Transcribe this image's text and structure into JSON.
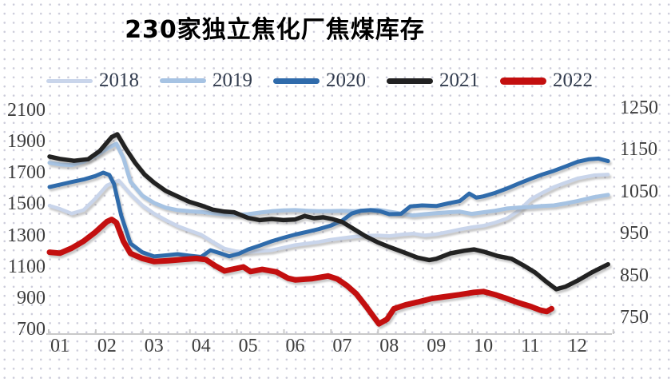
{
  "title": "230家独立焦化厂焦煤库存",
  "legend": {
    "items": [
      {
        "label": "2018",
        "color": "#c9d5eb",
        "thickness": 5
      },
      {
        "label": "2019",
        "color": "#a6c3e3",
        "thickness": 6
      },
      {
        "label": "2020",
        "color": "#2f6bab",
        "thickness": 7
      },
      {
        "label": "2021",
        "color": "#222222",
        "thickness": 7
      },
      {
        "label": "2022",
        "color": "#c30f0f",
        "thickness": 9
      }
    ]
  },
  "chart_data": {
    "type": "line",
    "title": "230家独立焦化厂焦煤库存",
    "xlabel": "",
    "ylabel": "",
    "grid": false,
    "legend_position": "top",
    "x_ticks": [
      "01",
      "02",
      "03",
      "04",
      "05",
      "06",
      "07",
      "08",
      "09",
      "10",
      "11",
      "12"
    ],
    "left_axis": {
      "ticks": [
        2100,
        1900,
        1700,
        1500,
        1300,
        1100,
        900,
        700
      ],
      "min": 700,
      "max": 2100
    },
    "right_axis": {
      "ticks": [
        1250,
        1150,
        1050,
        950,
        850,
        750
      ],
      "min": 750,
      "max": 1250
    },
    "series": [
      {
        "name": "2018",
        "color": "#c9d5eb",
        "width": 4.5,
        "axis": "left",
        "points": [
          [
            0.78,
            1490
          ],
          [
            1,
            1470
          ],
          [
            1.25,
            1440
          ],
          [
            1.5,
            1462
          ],
          [
            1.75,
            1535
          ],
          [
            2,
            1620
          ],
          [
            2.25,
            1652
          ],
          [
            2.5,
            1565
          ],
          [
            2.75,
            1492
          ],
          [
            3,
            1440
          ],
          [
            3.25,
            1398
          ],
          [
            3.5,
            1360
          ],
          [
            3.75,
            1332
          ],
          [
            4,
            1305
          ],
          [
            4.25,
            1258
          ],
          [
            4.5,
            1215
          ],
          [
            4.75,
            1198
          ],
          [
            5,
            1192
          ],
          [
            5.25,
            1200
          ],
          [
            5.5,
            1205
          ],
          [
            5.75,
            1222
          ],
          [
            6,
            1238
          ],
          [
            6.25,
            1248
          ],
          [
            6.5,
            1258
          ],
          [
            6.75,
            1272
          ],
          [
            7,
            1282
          ],
          [
            7.25,
            1292
          ],
          [
            7.5,
            1298
          ],
          [
            7.75,
            1300
          ],
          [
            8,
            1296
          ],
          [
            8.25,
            1305
          ],
          [
            8.5,
            1312
          ],
          [
            8.75,
            1300
          ],
          [
            9,
            1308
          ],
          [
            9.25,
            1322
          ],
          [
            9.5,
            1338
          ],
          [
            9.75,
            1352
          ],
          [
            10,
            1362
          ],
          [
            10.25,
            1382
          ],
          [
            10.5,
            1408
          ],
          [
            10.75,
            1458
          ],
          [
            11,
            1530
          ],
          [
            11.25,
            1572
          ],
          [
            11.5,
            1610
          ],
          [
            11.75,
            1638
          ],
          [
            12,
            1665
          ],
          [
            12.35,
            1685
          ],
          [
            12.65,
            1690
          ]
        ]
      },
      {
        "name": "2019",
        "color": "#a6c3e3",
        "width": 5,
        "axis": "left",
        "points": [
          [
            0.78,
            1765
          ],
          [
            1,
            1755
          ],
          [
            1.25,
            1750
          ],
          [
            1.5,
            1772
          ],
          [
            1.75,
            1808
          ],
          [
            2,
            1855
          ],
          [
            2.2,
            1888
          ],
          [
            2.35,
            1795
          ],
          [
            2.5,
            1645
          ],
          [
            2.75,
            1555
          ],
          [
            3,
            1508
          ],
          [
            3.25,
            1478
          ],
          [
            3.5,
            1462
          ],
          [
            3.75,
            1455
          ],
          [
            4,
            1450
          ],
          [
            4.25,
            1442
          ],
          [
            4.5,
            1435
          ],
          [
            4.75,
            1432
          ],
          [
            5,
            1436
          ],
          [
            5.25,
            1446
          ],
          [
            5.5,
            1455
          ],
          [
            5.75,
            1460
          ],
          [
            6,
            1462
          ],
          [
            6.25,
            1458
          ],
          [
            6.5,
            1455
          ],
          [
            6.75,
            1456
          ],
          [
            7,
            1458
          ],
          [
            7.25,
            1455
          ],
          [
            7.5,
            1460
          ],
          [
            7.75,
            1465
          ],
          [
            8,
            1452
          ],
          [
            8.25,
            1440
          ],
          [
            8.5,
            1428
          ],
          [
            8.75,
            1436
          ],
          [
            9,
            1442
          ],
          [
            9.25,
            1448
          ],
          [
            9.5,
            1452
          ],
          [
            9.75,
            1438
          ],
          [
            10,
            1448
          ],
          [
            10.25,
            1458
          ],
          [
            10.5,
            1472
          ],
          [
            10.75,
            1478
          ],
          [
            11,
            1482
          ],
          [
            11.25,
            1488
          ],
          [
            11.5,
            1492
          ],
          [
            11.75,
            1505
          ],
          [
            12,
            1520
          ],
          [
            12.35,
            1545
          ],
          [
            12.65,
            1560
          ]
        ]
      },
      {
        "name": "2020",
        "color": "#2f6bab",
        "width": 5,
        "axis": "left",
        "points": [
          [
            0.78,
            1610
          ],
          [
            1,
            1625
          ],
          [
            1.25,
            1642
          ],
          [
            1.5,
            1658
          ],
          [
            1.75,
            1680
          ],
          [
            1.92,
            1702
          ],
          [
            2.05,
            1688
          ],
          [
            2.15,
            1630
          ],
          [
            2.3,
            1430
          ],
          [
            2.5,
            1248
          ],
          [
            2.75,
            1192
          ],
          [
            3,
            1165
          ],
          [
            3.25,
            1172
          ],
          [
            3.5,
            1180
          ],
          [
            3.75,
            1170
          ],
          [
            4,
            1162
          ],
          [
            4.2,
            1205
          ],
          [
            4.4,
            1186
          ],
          [
            4.6,
            1166
          ],
          [
            4.8,
            1182
          ],
          [
            5,
            1210
          ],
          [
            5.25,
            1235
          ],
          [
            5.5,
            1262
          ],
          [
            5.75,
            1285
          ],
          [
            6,
            1305
          ],
          [
            6.25,
            1322
          ],
          [
            6.5,
            1340
          ],
          [
            6.75,
            1362
          ],
          [
            7,
            1395
          ],
          [
            7.2,
            1440
          ],
          [
            7.4,
            1458
          ],
          [
            7.6,
            1462
          ],
          [
            7.8,
            1455
          ],
          [
            8,
            1436
          ],
          [
            8.25,
            1438
          ],
          [
            8.45,
            1486
          ],
          [
            8.7,
            1492
          ],
          [
            9,
            1488
          ],
          [
            9.25,
            1505
          ],
          [
            9.5,
            1520
          ],
          [
            9.7,
            1568
          ],
          [
            9.85,
            1542
          ],
          [
            10,
            1550
          ],
          [
            10.25,
            1572
          ],
          [
            10.5,
            1600
          ],
          [
            10.75,
            1632
          ],
          [
            11,
            1662
          ],
          [
            11.25,
            1690
          ],
          [
            11.5,
            1714
          ],
          [
            11.75,
            1742
          ],
          [
            12,
            1772
          ],
          [
            12.25,
            1788
          ],
          [
            12.45,
            1792
          ],
          [
            12.65,
            1776
          ]
        ]
      },
      {
        "name": "2021",
        "color": "#222222",
        "width": 5.5,
        "axis": "left",
        "points": [
          [
            0.78,
            1805
          ],
          [
            1,
            1790
          ],
          [
            1.3,
            1778
          ],
          [
            1.6,
            1788
          ],
          [
            1.85,
            1842
          ],
          [
            2.1,
            1930
          ],
          [
            2.22,
            1948
          ],
          [
            2.4,
            1855
          ],
          [
            2.6,
            1765
          ],
          [
            2.8,
            1690
          ],
          [
            3,
            1638
          ],
          [
            3.25,
            1585
          ],
          [
            3.5,
            1550
          ],
          [
            3.75,
            1515
          ],
          [
            4,
            1492
          ],
          [
            4.25,
            1465
          ],
          [
            4.5,
            1452
          ],
          [
            4.7,
            1448
          ],
          [
            5,
            1412
          ],
          [
            5.25,
            1398
          ],
          [
            5.5,
            1405
          ],
          [
            5.75,
            1398
          ],
          [
            6,
            1402
          ],
          [
            6.2,
            1424
          ],
          [
            6.4,
            1410
          ],
          [
            6.6,
            1416
          ],
          [
            6.8,
            1404
          ],
          [
            7,
            1386
          ],
          [
            7.25,
            1340
          ],
          [
            7.5,
            1294
          ],
          [
            7.75,
            1256
          ],
          [
            8,
            1226
          ],
          [
            8.3,
            1192
          ],
          [
            8.6,
            1158
          ],
          [
            8.85,
            1142
          ],
          [
            9,
            1150
          ],
          [
            9.3,
            1185
          ],
          [
            9.6,
            1202
          ],
          [
            9.8,
            1210
          ],
          [
            10,
            1196
          ],
          [
            10.3,
            1168
          ],
          [
            10.6,
            1150
          ],
          [
            10.85,
            1108
          ],
          [
            11.1,
            1062
          ],
          [
            11.35,
            1000
          ],
          [
            11.55,
            955
          ],
          [
            11.75,
            972
          ],
          [
            12,
            1010
          ],
          [
            12.3,
            1062
          ],
          [
            12.65,
            1115
          ]
        ]
      },
      {
        "name": "2022",
        "color": "#c30f0f",
        "width": 7,
        "axis": "left",
        "points": [
          [
            0.78,
            1192
          ],
          [
            1,
            1186
          ],
          [
            1.25,
            1218
          ],
          [
            1.5,
            1262
          ],
          [
            1.75,
            1320
          ],
          [
            2,
            1388
          ],
          [
            2.1,
            1402
          ],
          [
            2.2,
            1382
          ],
          [
            2.35,
            1262
          ],
          [
            2.5,
            1185
          ],
          [
            2.75,
            1152
          ],
          [
            3,
            1132
          ],
          [
            3.3,
            1138
          ],
          [
            3.6,
            1145
          ],
          [
            3.9,
            1152
          ],
          [
            4.1,
            1145
          ],
          [
            4.3,
            1105
          ],
          [
            4.5,
            1072
          ],
          [
            4.7,
            1085
          ],
          [
            4.9,
            1098
          ],
          [
            5.05,
            1068
          ],
          [
            5.3,
            1082
          ],
          [
            5.6,
            1066
          ],
          [
            5.85,
            1025
          ],
          [
            6,
            1015
          ],
          [
            6.35,
            1022
          ],
          [
            6.7,
            1040
          ],
          [
            6.9,
            1020
          ],
          [
            7.1,
            978
          ],
          [
            7.3,
            925
          ],
          [
            7.5,
            848
          ],
          [
            7.78,
            733
          ],
          [
            7.95,
            762
          ],
          [
            8.1,
            830
          ],
          [
            8.35,
            855
          ],
          [
            8.6,
            872
          ],
          [
            8.9,
            895
          ],
          [
            9.2,
            908
          ],
          [
            9.5,
            920
          ],
          [
            9.8,
            935
          ],
          [
            10,
            940
          ],
          [
            10.25,
            920
          ],
          [
            10.5,
            895
          ],
          [
            10.75,
            868
          ],
          [
            11,
            845
          ],
          [
            11.2,
            822
          ],
          [
            11.35,
            812
          ],
          [
            11.45,
            830
          ]
        ]
      }
    ]
  }
}
